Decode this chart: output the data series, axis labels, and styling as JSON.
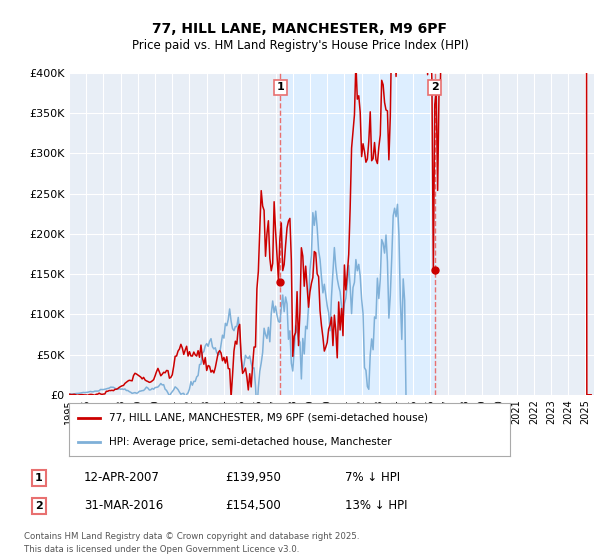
{
  "title1": "77, HILL LANE, MANCHESTER, M9 6PF",
  "title2": "Price paid vs. HM Land Registry's House Price Index (HPI)",
  "legend_line1": "77, HILL LANE, MANCHESTER, M9 6PF (semi-detached house)",
  "legend_line2": "HPI: Average price, semi-detached house, Manchester",
  "annotation1_label": "1",
  "annotation1_date": "12-APR-2007",
  "annotation1_price": "£139,950",
  "annotation1_hpi": "7% ↓ HPI",
  "annotation2_label": "2",
  "annotation2_date": "31-MAR-2016",
  "annotation2_price": "£154,500",
  "annotation2_hpi": "13% ↓ HPI",
  "footer": "Contains HM Land Registry data © Crown copyright and database right 2025.\nThis data is licensed under the Open Government Licence v3.0.",
  "hpi_color": "#7fb0d8",
  "price_color": "#cc0000",
  "vline_color": "#e87070",
  "span_color": "#ddeeff",
  "chart_bg": "#e8eef6",
  "grid_color": "#ffffff",
  "ylim": [
    0,
    400000
  ],
  "ytick_vals": [
    0,
    50000,
    100000,
    150000,
    200000,
    250000,
    300000,
    350000,
    400000
  ],
  "ytick_labels": [
    "£0",
    "£50K",
    "£100K",
    "£150K",
    "£200K",
    "£250K",
    "£300K",
    "£350K",
    "£400K"
  ],
  "sale1_year": 2007.28,
  "sale1_price": 139950,
  "sale2_year": 2016.24,
  "sale2_price": 154500,
  "xstart": 1995,
  "xend": 2025.5
}
